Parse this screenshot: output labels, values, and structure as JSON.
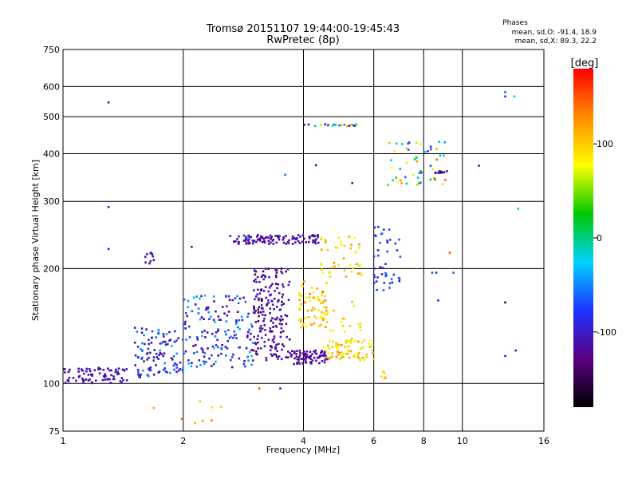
{
  "chart_data": {
    "type": "scatter",
    "title": "Tromsø 20151107 19:44:00-19:45:43",
    "subtitle": "RwPretec (8p)",
    "xlabel": "Frequency [MHz]",
    "ylabel": "Stationary phase Virtual Height [km]",
    "x_scale": "log2",
    "y_scale": "log",
    "xlim": [
      1,
      16
    ],
    "ylim": [
      75,
      750
    ],
    "x_ticks": [
      1,
      2,
      4,
      6,
      8,
      10,
      16
    ],
    "y_ticks": [
      75,
      100,
      200,
      300,
      400,
      500,
      600,
      750
    ],
    "grid": true,
    "info": {
      "heading": "Phases",
      "line_o": "mean, sd,O: -91.4, 18.9",
      "line_x": "mean, sd,X:  89.3, 22.2"
    },
    "colorbar": {
      "label": "[deg]",
      "range": [
        -180,
        180
      ],
      "ticks": [
        100,
        0,
        -100
      ],
      "colors": [
        "#000000",
        "#5a0080",
        "#1e32ff",
        "#00d2ff",
        "#00c800",
        "#ffff00",
        "#ff8c00",
        "#ff0000"
      ]
    },
    "clusters": [
      {
        "x": [
          1.0,
          1.45
        ],
        "y": [
          100,
          110
        ],
        "phase": [
          -120,
          -100
        ],
        "n": 80
      },
      {
        "x": [
          1.5,
          2.0
        ],
        "y": [
          103,
          140
        ],
        "phase": [
          -120,
          -40
        ],
        "n": 110
      },
      {
        "x": [
          2.0,
          3.0
        ],
        "y": [
          110,
          170
        ],
        "phase": [
          -130,
          -30
        ],
        "n": 160
      },
      {
        "x": [
          3.0,
          3.7
        ],
        "y": [
          115,
          200
        ],
        "phase": [
          -150,
          -90
        ],
        "n": 190
      },
      {
        "x": [
          3.7,
          4.6
        ],
        "y": [
          112,
          122
        ],
        "phase": [
          -130,
          -100
        ],
        "n": 80
      },
      {
        "x": [
          3.9,
          4.6
        ],
        "y": [
          140,
          185
        ],
        "phase": [
          70,
          140
        ],
        "n": 70
      },
      {
        "x": [
          4.5,
          6.0
        ],
        "y": [
          115,
          130
        ],
        "phase": [
          60,
          130
        ],
        "n": 80
      },
      {
        "x": [
          4.5,
          5.6
        ],
        "y": [
          130,
          165
        ],
        "phase": [
          80,
          130
        ],
        "n": 20
      },
      {
        "x": [
          2.6,
          4.4
        ],
        "y": [
          232,
          245
        ],
        "phase": [
          -130,
          -100
        ],
        "n": 110
      },
      {
        "x": [
          4.4,
          5.6
        ],
        "y": [
          190,
          245
        ],
        "phase": [
          60,
          130
        ],
        "n": 45
      },
      {
        "x": [
          6.0,
          7.0
        ],
        "y": [
          175,
          260
        ],
        "phase": [
          -110,
          -60
        ],
        "n": 45
      },
      {
        "x": [
          6.5,
          9.2
        ],
        "y": [
          330,
          430
        ],
        "phase": [
          -100,
          150
        ],
        "n": 55
      },
      {
        "x": [
          8.5,
          9.3
        ],
        "y": [
          355,
          360
        ],
        "phase": [
          -140,
          -110
        ],
        "n": 12
      },
      {
        "x": [
          4.0,
          5.5
        ],
        "y": [
          472,
          478
        ],
        "phase": [
          -120,
          130
        ],
        "n": 22
      },
      {
        "x": [
          1.6,
          1.7
        ],
        "y": [
          203,
          222
        ],
        "phase": [
          -120,
          -100
        ],
        "n": 10
      },
      {
        "x": [
          1.6,
          2.5
        ],
        "y": [
          78,
          90
        ],
        "phase": [
          80,
          140
        ],
        "n": 8
      },
      {
        "x": [
          6.2,
          6.5
        ],
        "y": [
          103,
          108
        ],
        "phase": [
          90,
          120
        ],
        "n": 6
      }
    ],
    "points": [
      {
        "x": 1.3,
        "y": 545,
        "phase": -110
      },
      {
        "x": 1.3,
        "y": 290,
        "phase": -110
      },
      {
        "x": 1.3,
        "y": 225,
        "phase": -110
      },
      {
        "x": 12.8,
        "y": 580,
        "phase": -60
      },
      {
        "x": 12.8,
        "y": 565,
        "phase": -80
      },
      {
        "x": 13.5,
        "y": 565,
        "phase": -20
      },
      {
        "x": 13.8,
        "y": 287,
        "phase": -10
      },
      {
        "x": 12.8,
        "y": 163,
        "phase": -140
      },
      {
        "x": 12.8,
        "y": 118,
        "phase": -100
      },
      {
        "x": 13.6,
        "y": 122,
        "phase": -110
      },
      {
        "x": 11.0,
        "y": 372,
        "phase": -110
      },
      {
        "x": 9.3,
        "y": 220,
        "phase": 150
      },
      {
        "x": 9.5,
        "y": 195,
        "phase": -60
      },
      {
        "x": 8.4,
        "y": 195,
        "phase": -60
      },
      {
        "x": 8.7,
        "y": 165,
        "phase": -90
      },
      {
        "x": 8.6,
        "y": 195,
        "phase": -80
      },
      {
        "x": 3.6,
        "y": 352,
        "phase": -60
      },
      {
        "x": 5.3,
        "y": 335,
        "phase": -110
      },
      {
        "x": 4.3,
        "y": 373,
        "phase": -110
      },
      {
        "x": 3.1,
        "y": 97,
        "phase": 150
      },
      {
        "x": 3.5,
        "y": 97,
        "phase": -110
      },
      {
        "x": 2.1,
        "y": 228,
        "phase": -110
      },
      {
        "x": 2.9,
        "y": 240,
        "phase": -40
      }
    ]
  }
}
